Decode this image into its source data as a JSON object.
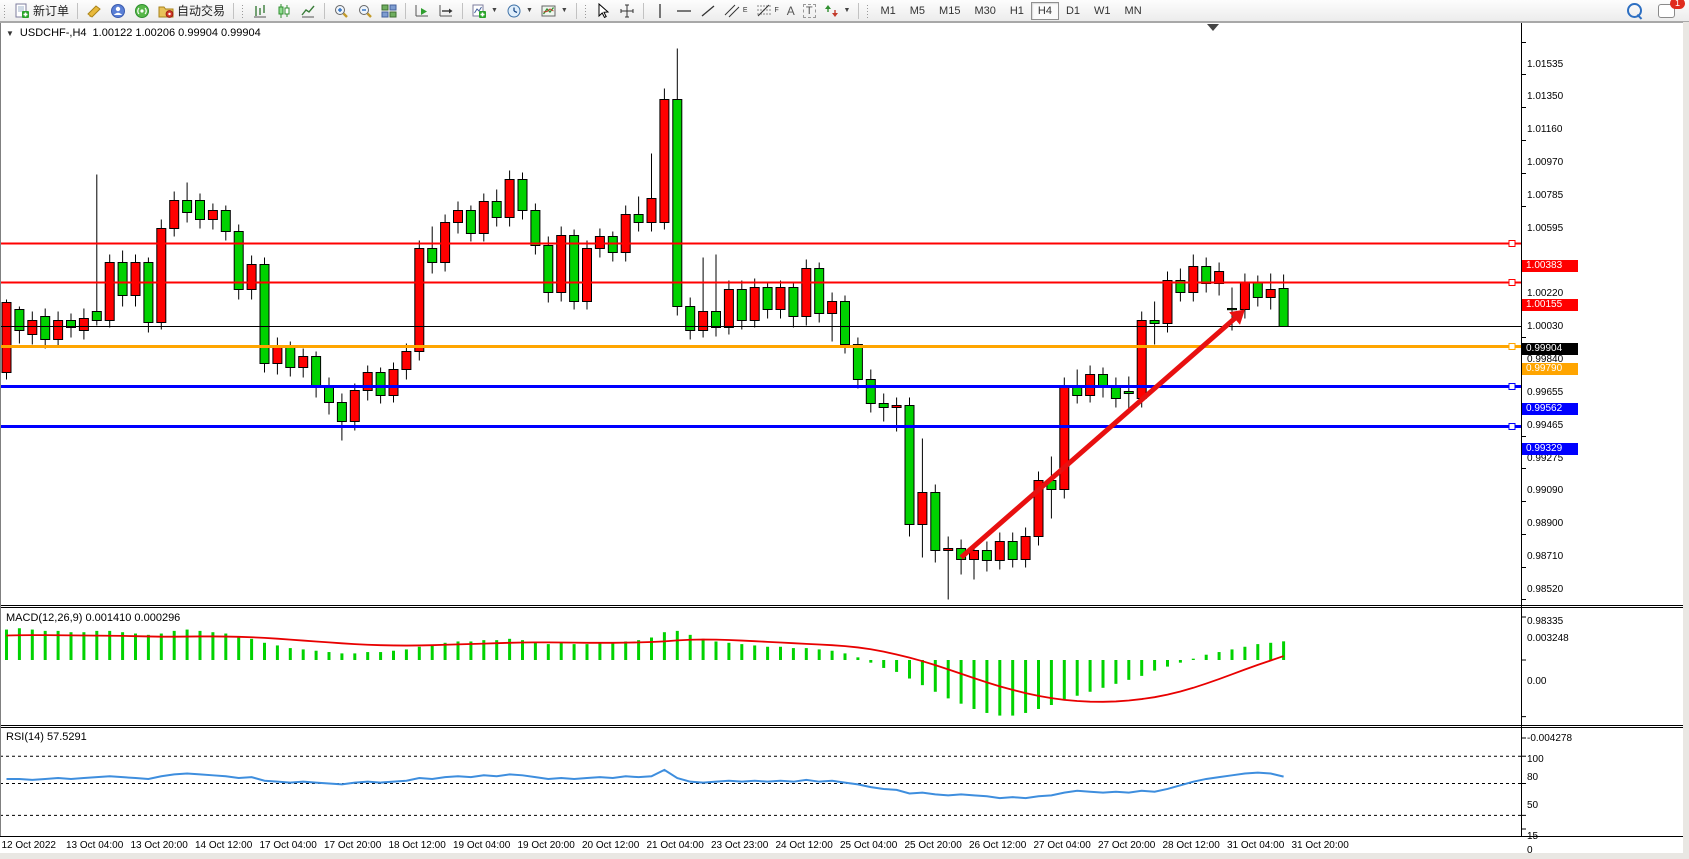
{
  "toolbar": {
    "new_order_label": "新订单",
    "autotrading_label": "自动交易",
    "text_tool_label": "A",
    "label_tool_label": "T",
    "channel_tool_sub": "E",
    "fibo_tool_sub": "F",
    "dropdown_glyph": "▼",
    "periods": [
      {
        "label": "M1"
      },
      {
        "label": "M5"
      },
      {
        "label": "M15"
      },
      {
        "label": "M30"
      },
      {
        "label": "H1"
      },
      {
        "label": "H4"
      },
      {
        "label": "D1"
      },
      {
        "label": "W1"
      },
      {
        "label": "MN"
      }
    ],
    "active_period": "H4",
    "chat_badge": "1"
  },
  "chart": {
    "collapse_glyph": "▼",
    "title_symbol": "USDCHF-,H4",
    "title_ohlc": "1.00122 1.00206 0.99904 0.99904"
  },
  "macd_panel": {
    "label": "MACD(12,26,9)",
    "values_text": "0.001410 0.000296"
  },
  "rsi_panel": {
    "label": "RSI(14)",
    "value_text": "57.5291"
  },
  "colors": {
    "up_candle": "#FF0000",
    "down_candle": "#00D200",
    "candle_outline": "#000000",
    "macd_hist": "#00D200",
    "macd_signal": "#E80000",
    "rsi_line": "#3E8EDE",
    "bid_line": "#000000",
    "resistance_line": "#FF0000",
    "pivot_line": "#FFA500",
    "support_line": "#0000FF",
    "arrow": "#E81010"
  },
  "chart_data": {
    "type": "candlestick",
    "symbol": "USDCHF-",
    "timeframe": "H4",
    "color_convention": "red = up candle, green = down candle",
    "title": "USDCHF-,H4",
    "current_bar": {
      "open": 1.00122,
      "high": 1.00206,
      "low": 0.99904,
      "close": 0.99904
    },
    "price_axis_ticks": [
      1.01535,
      1.0135,
      1.0116,
      1.0097,
      1.00785,
      1.00595,
      1.0022,
      1.0003,
      0.9984,
      0.99655,
      0.99465,
      0.99275,
      0.9909,
      0.989,
      0.9871,
      0.9852,
      0.98335
    ],
    "time_axis_labels": [
      "12 Oct 2022",
      "13 Oct 04:00",
      "13 Oct 20:00",
      "14 Oct 12:00",
      "17 Oct 04:00",
      "17 Oct 20:00",
      "18 Oct 12:00",
      "19 Oct 04:00",
      "19 Oct 20:00",
      "20 Oct 12:00",
      "21 Oct 04:00",
      "23 Oct 23:00",
      "24 Oct 12:00",
      "25 Oct 04:00",
      "25 Oct 20:00",
      "26 Oct 12:00",
      "27 Oct 04:00",
      "27 Oct 20:00",
      "28 Oct 12:00",
      "31 Oct 04:00",
      "31 Oct 20:00"
    ],
    "hlines": [
      {
        "price": 1.00383,
        "label": "1.00383",
        "color": "#FF0000",
        "width": 2,
        "marker": true
      },
      {
        "price": 1.00155,
        "label": "1.00155",
        "color": "#FF0000",
        "width": 2,
        "marker": true
      },
      {
        "price": 0.99904,
        "label": "0.99904",
        "color": "#000000",
        "width": 1,
        "marker": false
      },
      {
        "price": 0.9979,
        "label": "0.99790",
        "color": "#FFA500",
        "width": 3,
        "marker": true
      },
      {
        "price": 0.99562,
        "label": "0.99562",
        "color": "#0000FF",
        "width": 3,
        "marker": true
      },
      {
        "price": 0.99329,
        "label": "0.99329",
        "color": "#0000FF",
        "width": 3,
        "marker": true
      }
    ],
    "arrow_annotation": {
      "from_bar": 74,
      "from_price": 0.9858,
      "to_bar": 96,
      "to_price": 1.0
    },
    "candles": [
      [
        0.9964,
        1.0006,
        0.996,
        1.0004
      ],
      [
        1.0,
        1.0002,
        0.9981,
        0.9988
      ],
      [
        0.9986,
        0.9999,
        0.998,
        0.9994
      ],
      [
        0.9996,
        1.0001,
        0.9978,
        0.9983
      ],
      [
        0.9983,
        0.9999,
        0.9979,
        0.9994
      ],
      [
        0.9994,
        0.9998,
        0.9984,
        0.999
      ],
      [
        0.9988,
        1.0001,
        0.9983,
        0.9995
      ],
      [
        0.9999,
        1.0078,
        0.9991,
        0.9994
      ],
      [
        0.9994,
        1.0032,
        0.999,
        1.0027
      ],
      [
        1.0027,
        1.0034,
        1.0002,
        1.0008
      ],
      [
        1.0008,
        1.0032,
        1.0002,
        1.0027
      ],
      [
        1.0027,
        1.003,
        0.9987,
        0.9993
      ],
      [
        0.9993,
        1.0052,
        0.9989,
        1.0047
      ],
      [
        1.0047,
        1.0068,
        1.0042,
        1.0063
      ],
      [
        1.0063,
        1.0073,
        1.005,
        1.0056
      ],
      [
        1.0063,
        1.0067,
        1.0047,
        1.0052
      ],
      [
        1.0052,
        1.0061,
        1.0046,
        1.0057
      ],
      [
        1.0057,
        1.006,
        1.004,
        1.0045
      ],
      [
        1.0045,
        1.0049,
        1.0006,
        1.0012
      ],
      [
        1.0012,
        1.0031,
        1.0006,
        1.0026
      ],
      [
        1.0026,
        1.003,
        0.9964,
        0.9969
      ],
      [
        0.9969,
        0.9984,
        0.9963,
        0.9979
      ],
      [
        0.9979,
        0.9982,
        0.9962,
        0.9967
      ],
      [
        0.9967,
        0.9978,
        0.9961,
        0.9973
      ],
      [
        0.9973,
        0.9976,
        0.995,
        0.9956
      ],
      [
        0.9956,
        0.9961,
        0.994,
        0.9947
      ],
      [
        0.9947,
        0.9952,
        0.9925,
        0.9936
      ],
      [
        0.9936,
        0.9958,
        0.9931,
        0.9954
      ],
      [
        0.9954,
        0.9968,
        0.9948,
        0.9964
      ],
      [
        0.9964,
        0.9967,
        0.9946,
        0.9951
      ],
      [
        0.9951,
        0.997,
        0.9947,
        0.9966
      ],
      [
        0.9966,
        0.9981,
        0.996,
        0.9976
      ],
      [
        0.9976,
        1.004,
        0.9971,
        1.0035
      ],
      [
        1.0035,
        1.0048,
        1.0021,
        1.0027
      ],
      [
        1.0027,
        1.0055,
        1.0022,
        1.005
      ],
      [
        1.005,
        1.0062,
        1.0044,
        1.0057
      ],
      [
        1.0057,
        1.006,
        1.0039,
        1.0044
      ],
      [
        1.0044,
        1.0067,
        1.0039,
        1.0062
      ],
      [
        1.0062,
        1.0069,
        1.0048,
        1.0053
      ],
      [
        1.0053,
        1.008,
        1.0048,
        1.0075
      ],
      [
        1.0075,
        1.0079,
        1.0052,
        1.0057
      ],
      [
        1.0057,
        1.0061,
        1.0032,
        1.0037
      ],
      [
        1.0037,
        1.0042,
        1.0004,
        1.001
      ],
      [
        1.001,
        1.0048,
        1.0005,
        1.0043
      ],
      [
        1.0043,
        1.0046,
        1.0,
        1.0005
      ],
      [
        1.0005,
        1.004,
        1.0,
        1.0035
      ],
      [
        1.0035,
        1.0047,
        1.003,
        1.0042
      ],
      [
        1.0042,
        1.0045,
        1.0028,
        1.0033
      ],
      [
        1.0033,
        1.006,
        1.0028,
        1.0055
      ],
      [
        1.0055,
        1.0065,
        1.0045,
        1.005
      ],
      [
        1.005,
        1.009,
        1.0045,
        1.0064
      ],
      [
        1.005,
        1.0127,
        1.0046,
        1.0121
      ],
      [
        1.0121,
        1.015,
        0.9997,
        1.0002
      ],
      [
        1.0002,
        1.0007,
        0.9983,
        0.9988
      ],
      [
        0.9988,
        1.003,
        0.9984,
        0.9999
      ],
      [
        0.9999,
        1.0032,
        0.9985,
        0.999
      ],
      [
        0.999,
        1.0017,
        0.9986,
        1.0012
      ],
      [
        1.0012,
        1.0017,
        0.9989,
        0.9994
      ],
      [
        0.9994,
        1.0018,
        0.999,
        1.0013
      ],
      [
        1.0013,
        1.0016,
        0.9995,
        1.0
      ],
      [
        1.0,
        1.0017,
        0.9995,
        1.0013
      ],
      [
        1.0013,
        1.0016,
        0.999,
        0.9996
      ],
      [
        0.9996,
        1.0029,
        0.9991,
        1.0024
      ],
      [
        1.0024,
        1.0027,
        0.9993,
        0.9998
      ],
      [
        0.9998,
        1.001,
        0.9982,
        1.0005
      ],
      [
        1.0005,
        1.0008,
        0.9975,
        0.998
      ],
      [
        0.998,
        0.9984,
        0.9955,
        0.996
      ],
      [
        0.996,
        0.9966,
        0.9941,
        0.9946
      ],
      [
        0.9946,
        0.9952,
        0.9936,
        0.9944
      ],
      [
        0.9944,
        0.995,
        0.993,
        0.9945
      ],
      [
        0.9945,
        0.995,
        0.987,
        0.9877
      ],
      [
        0.9877,
        0.9926,
        0.9858,
        0.9895
      ],
      [
        0.9895,
        0.99,
        0.9855,
        0.9862
      ],
      [
        0.9862,
        0.987,
        0.98335,
        0.9863
      ],
      [
        0.9863,
        0.9868,
        0.9848,
        0.9857
      ],
      [
        0.9857,
        0.9866,
        0.9845,
        0.9862
      ],
      [
        0.9862,
        0.9867,
        0.985,
        0.9856
      ],
      [
        0.9856,
        0.9872,
        0.9851,
        0.9867
      ],
      [
        0.9867,
        0.9872,
        0.9852,
        0.9857
      ],
      [
        0.9857,
        0.9875,
        0.9852,
        0.987
      ],
      [
        0.987,
        0.9907,
        0.9865,
        0.9902
      ],
      [
        0.9902,
        0.9916,
        0.988,
        0.9897
      ],
      [
        0.9897,
        0.9961,
        0.9892,
        0.9956
      ],
      [
        0.9956,
        0.9966,
        0.9946,
        0.9951
      ],
      [
        0.9951,
        0.9968,
        0.9947,
        0.9963
      ],
      [
        0.9963,
        0.9967,
        0.995,
        0.9956
      ],
      [
        0.9956,
        0.9961,
        0.9944,
        0.9949
      ],
      [
        0.9953,
        0.9962,
        0.9943,
        0.9952
      ],
      [
        0.9949,
        0.9999,
        0.9944,
        0.9994
      ],
      [
        0.9994,
        1.0005,
        0.998,
        0.9992
      ],
      [
        0.9992,
        1.0022,
        0.9987,
        1.0017
      ],
      [
        1.0017,
        1.0024,
        1.0005,
        1.001
      ],
      [
        1.001,
        1.0032,
        1.0005,
        1.0025
      ],
      [
        1.0025,
        1.003,
        1.001,
        1.0015
      ],
      [
        1.0015,
        1.0027,
        1.0008,
        1.0022
      ],
      [
        1.0001,
        1.0013,
        0.9988,
        1.0
      ],
      [
        1.0,
        1.0021,
        0.9995,
        1.0016
      ],
      [
        1.0016,
        1.002,
        1.0002,
        1.0007
      ],
      [
        1.0007,
        1.0021,
        1.0,
        1.0012
      ],
      [
        1.00122,
        1.00206,
        0.99904,
        0.99904
      ]
    ],
    "indicators": {
      "macd": {
        "label": "MACD(12,26,9)",
        "current_hist": 0.00141,
        "current_signal": 0.000296,
        "axis_ticks": [
          0.003248,
          0.0,
          -0.004278
        ],
        "axis_tick_labels": [
          "0.003248",
          "0.00",
          "-0.004278"
        ],
        "histogram": [
          0.0023,
          0.0024,
          0.0023,
          0.0022,
          0.0022,
          0.0021,
          0.0021,
          0.0022,
          0.0022,
          0.0021,
          0.002,
          0.0019,
          0.002,
          0.0022,
          0.0023,
          0.0022,
          0.0021,
          0.002,
          0.0018,
          0.0016,
          0.0013,
          0.0011,
          0.0009,
          0.0008,
          0.0007,
          0.0006,
          0.0005,
          0.0005,
          0.0006,
          0.0006,
          0.0007,
          0.0008,
          0.001,
          0.0011,
          0.0013,
          0.0014,
          0.0014,
          0.0015,
          0.0015,
          0.0016,
          0.0015,
          0.0013,
          0.0012,
          0.0013,
          0.0012,
          0.0012,
          0.0013,
          0.0013,
          0.0014,
          0.0015,
          0.0017,
          0.0021,
          0.0022,
          0.0019,
          0.0016,
          0.0014,
          0.0013,
          0.0012,
          0.0011,
          0.001,
          0.001,
          0.0009,
          0.0009,
          0.0008,
          0.0007,
          0.0005,
          0.0002,
          -0.0002,
          -0.0006,
          -0.0009,
          -0.0014,
          -0.0019,
          -0.0024,
          -0.0029,
          -0.0033,
          -0.0037,
          -0.004,
          -0.0042,
          -0.0042,
          -0.004,
          -0.0037,
          -0.0034,
          -0.003,
          -0.0027,
          -0.0024,
          -0.0021,
          -0.0018,
          -0.0015,
          -0.0012,
          -0.0008,
          -0.0005,
          -0.0002,
          0.0001,
          0.0004,
          0.0006,
          0.0008,
          0.001,
          0.0012,
          0.0013,
          0.00141
        ],
        "signal": [
          0.00185,
          0.00187,
          0.00188,
          0.00188,
          0.00187,
          0.00186,
          0.00185,
          0.00184,
          0.00183,
          0.00182,
          0.0018,
          0.00178,
          0.00176,
          0.00176,
          0.00177,
          0.00178,
          0.00178,
          0.00177,
          0.00175,
          0.00172,
          0.00167,
          0.00161,
          0.00154,
          0.00147,
          0.0014,
          0.00133,
          0.00126,
          0.0012,
          0.00115,
          0.00112,
          0.0011,
          0.00109,
          0.0011,
          0.00112,
          0.00115,
          0.00118,
          0.00121,
          0.00124,
          0.00127,
          0.0013,
          0.00132,
          0.00133,
          0.00133,
          0.00132,
          0.00131,
          0.0013,
          0.0013,
          0.0013,
          0.00131,
          0.00133,
          0.00136,
          0.00141,
          0.00148,
          0.00153,
          0.00155,
          0.00154,
          0.00151,
          0.00147,
          0.00142,
          0.00137,
          0.00132,
          0.00127,
          0.00122,
          0.00117,
          0.00112,
          0.00105,
          0.00095,
          0.00081,
          0.00063,
          0.00042,
          0.00018,
          -9e-05,
          -0.00039,
          -0.00071,
          -0.00104,
          -0.00137,
          -0.00169,
          -0.00199,
          -0.00226,
          -0.0025,
          -0.00271,
          -0.00288,
          -0.00301,
          -0.0031,
          -0.00315,
          -0.00316,
          -0.00313,
          -0.00306,
          -0.00295,
          -0.00281,
          -0.00262,
          -0.00238,
          -0.0021,
          -0.00178,
          -0.00144,
          -0.00108,
          -0.00072,
          -0.00037,
          -4e-05,
          0.000296
        ]
      },
      "rsi": {
        "label": "RSI(14)",
        "current": 57.5291,
        "levels": [
          80,
          50,
          15
        ],
        "axis_ticks": [
          100,
          80,
          50,
          15,
          0
        ],
        "values": [
          55,
          55,
          54,
          55,
          56,
          55,
          56,
          57,
          58,
          57,
          56,
          55,
          58,
          60,
          61,
          60,
          59,
          58,
          56,
          57,
          53,
          52,
          51,
          52,
          51,
          50,
          49,
          51,
          52,
          51,
          52,
          53,
          56,
          55,
          57,
          58,
          57,
          59,
          58,
          60,
          59,
          57,
          55,
          56,
          55,
          56,
          57,
          56,
          58,
          57,
          58,
          65,
          56,
          52,
          51,
          52,
          53,
          52,
          53,
          52,
          53,
          52,
          54,
          52,
          53,
          51,
          49,
          46,
          44,
          43,
          39,
          40,
          38,
          37,
          38,
          37,
          36,
          34,
          35,
          34,
          36,
          37,
          40,
          42,
          41,
          40,
          41,
          40,
          42,
          41,
          44,
          48,
          52,
          55,
          57,
          59,
          61,
          62,
          61,
          57.53
        ]
      }
    }
  }
}
